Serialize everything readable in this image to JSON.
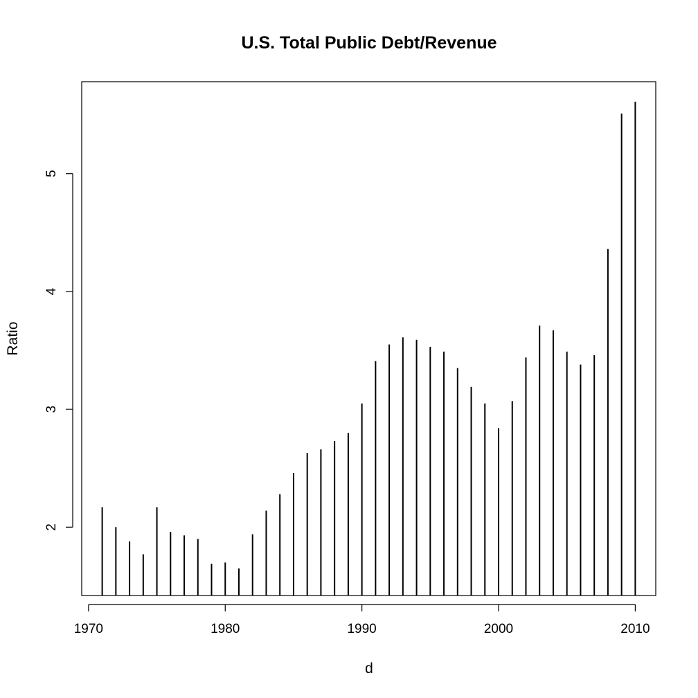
{
  "chart_data": {
    "type": "bar",
    "style": "histogram-spikes",
    "title": "U.S. Total Public Debt/Revenue",
    "xlabel": "d",
    "ylabel": "Ratio",
    "xlim": [
      1969.5,
      2011.5
    ],
    "ylim": [
      1.42,
      5.78
    ],
    "xticks": [
      1970,
      1980,
      1990,
      2000,
      2010
    ],
    "yticks": [
      2,
      3,
      4,
      5
    ],
    "grid": false,
    "color": "#000000",
    "x": [
      1971,
      1972,
      1973,
      1974,
      1975,
      1976,
      1977,
      1978,
      1979,
      1980,
      1981,
      1982,
      1983,
      1984,
      1985,
      1986,
      1987,
      1988,
      1989,
      1990,
      1991,
      1992,
      1993,
      1994,
      1995,
      1996,
      1997,
      1998,
      1999,
      2000,
      2001,
      2002,
      2003,
      2004,
      2005,
      2006,
      2007,
      2008,
      2009,
      2010
    ],
    "values": [
      2.17,
      2.0,
      1.88,
      1.77,
      2.17,
      1.96,
      1.93,
      1.9,
      1.69,
      1.7,
      1.65,
      1.94,
      2.14,
      2.28,
      2.46,
      2.63,
      2.66,
      2.73,
      2.8,
      3.05,
      3.41,
      3.55,
      3.61,
      3.59,
      3.53,
      3.49,
      3.35,
      3.19,
      3.05,
      2.84,
      3.07,
      3.44,
      3.71,
      3.67,
      3.49,
      3.38,
      3.46,
      4.36,
      5.51,
      5.61
    ]
  }
}
